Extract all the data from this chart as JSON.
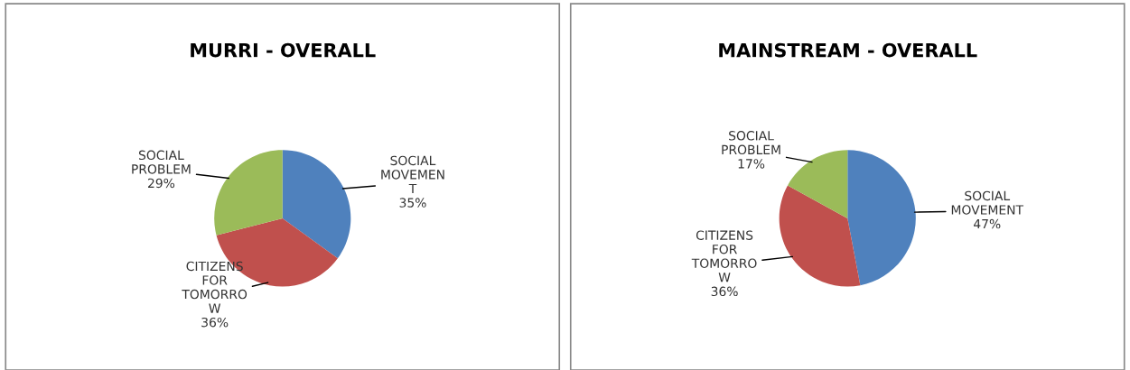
{
  "chart_data": [
    {
      "type": "pie",
      "title": "MURRI - OVERALL",
      "categories": [
        "SOCIAL\nMOVEMEN\nT",
        "CITIZENS\nFOR\nTOMORRO\nW",
        "SOCIAL\nPROBLEM"
      ],
      "values": [
        35,
        36,
        29
      ],
      "value_labels": [
        "35%",
        "36%",
        "29%"
      ],
      "colors": [
        "#4f81bd",
        "#c0504d",
        "#9bbb59"
      ]
    },
    {
      "type": "pie",
      "title": "MAINSTREAM - OVERALL",
      "categories": [
        "SOCIAL\nMOVEMENT",
        "CITIZENS\nFOR\nTOMORRO\nW",
        "SOCIAL\nPROBLEM"
      ],
      "values": [
        47,
        36,
        17
      ],
      "value_labels": [
        "47%",
        "36%",
        "17%"
      ],
      "colors": [
        "#4f81bd",
        "#c0504d",
        "#9bbb59"
      ]
    }
  ]
}
